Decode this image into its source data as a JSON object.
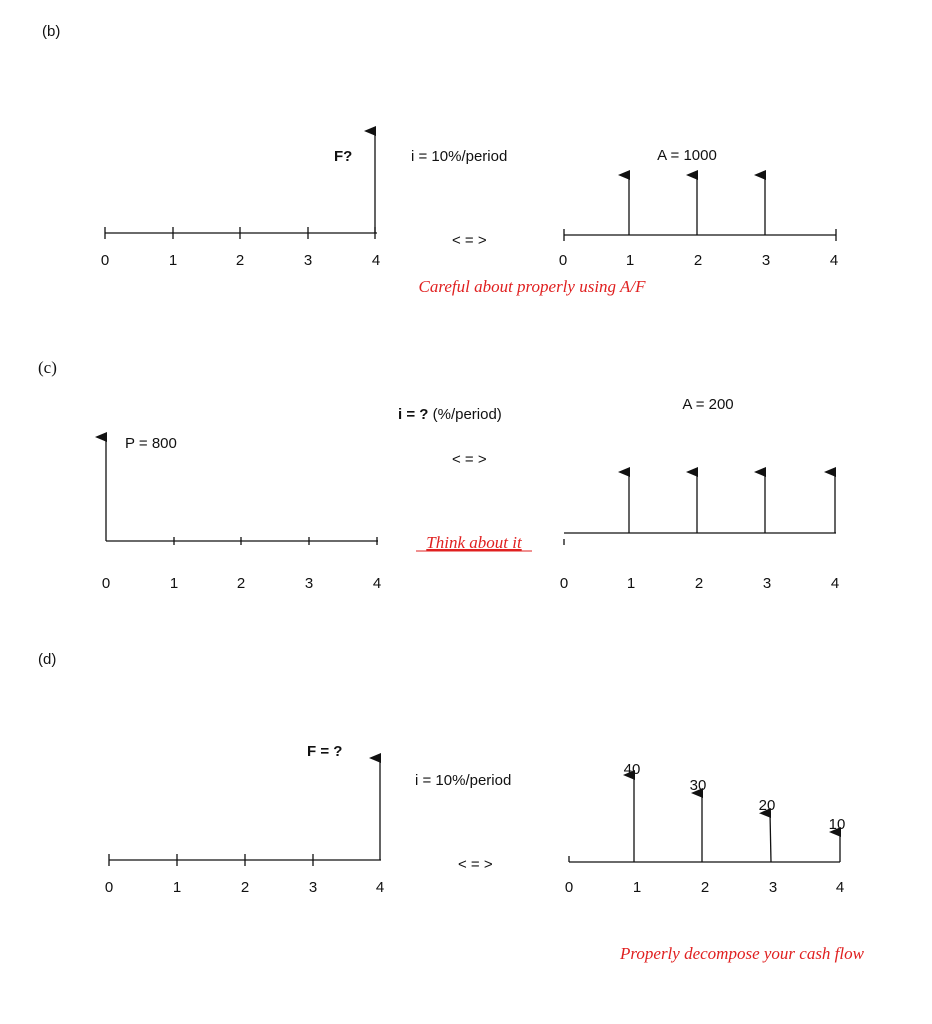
{
  "colors": {
    "line": "#111111",
    "note": "#e02020"
  },
  "parts": [
    {
      "key": "b",
      "label": "(b)",
      "left": {
        "ticks": [
          "0",
          "1",
          "2",
          "3",
          "4"
        ],
        "arrow_label": "F?"
      },
      "rate": "i = 10%/period",
      "equiv": "< = >",
      "right": {
        "ticks": [
          "0",
          "1",
          "2",
          "3",
          "4"
        ],
        "amount_label": "A = 1000"
      },
      "note": "Careful about properly using A/F"
    },
    {
      "key": "c",
      "label": "(c)",
      "left": {
        "ticks": [
          "0",
          "1",
          "2",
          "3",
          "4"
        ],
        "arrow_label": "P = 800"
      },
      "rate_bold": "i = ?",
      "rate_rest": " (%/period)",
      "equiv": "< = >",
      "right": {
        "ticks": [
          "0",
          "1",
          "2",
          "3",
          "4"
        ],
        "amount_label": "A = 200"
      },
      "note": "Think about it"
    },
    {
      "key": "d",
      "label": "(d)",
      "left": {
        "ticks": [
          "0",
          "1",
          "2",
          "3",
          "4"
        ],
        "arrow_label": "F = ?"
      },
      "rate": "i = 10%/period",
      "equiv": "< = >",
      "right": {
        "ticks": [
          "0",
          "1",
          "2",
          "3",
          "4"
        ],
        "flow_labels": [
          "40",
          "30",
          "20",
          "10"
        ]
      },
      "note": "Properly decompose your cash flow"
    }
  ]
}
